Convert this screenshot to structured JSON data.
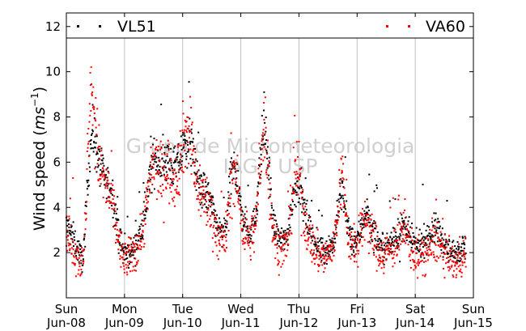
{
  "chart_data": {
    "type": "scatter",
    "watermark": [
      "Grupo de Micrometeorologia",
      "IAG / USP"
    ],
    "xlabel": "",
    "ylabel": "Wind speed (m s⁻¹)",
    "ylabel_parts": {
      "prefix": "Wind speed (",
      "unit": "ms",
      "exponent": "−1",
      "suffix": ")"
    },
    "ylim": [
      0,
      12.6
    ],
    "y_ticks": [
      2,
      4,
      6,
      8,
      10,
      12
    ],
    "x_range_days": [
      "2014-06-08",
      "2014-06-15"
    ],
    "x_ticks": [
      {
        "day": "Sun",
        "date": "Jun-08"
      },
      {
        "day": "Mon",
        "date": "Jun-09"
      },
      {
        "day": "Tue",
        "date": "Jun-10"
      },
      {
        "day": "Wed",
        "date": "Jun-11"
      },
      {
        "day": "Thu",
        "date": "Jun-12"
      },
      {
        "day": "Fri",
        "date": "Jun-13"
      },
      {
        "day": "Sat",
        "date": "Jun-14"
      },
      {
        "day": "Sun",
        "date": "Jun-15"
      }
    ],
    "grid": {
      "x": true,
      "y": false
    },
    "legend_placement": "top",
    "series": [
      {
        "name": "VL51",
        "color": "#000000",
        "hourly_mean": [
          3.2,
          3.0,
          2.8,
          2.6,
          2.3,
          2.1,
          1.8,
          1.7,
          3.5,
          5.5,
          6.8,
          7.3,
          6.8,
          6.3,
          5.8,
          5.5,
          5.2,
          5.0,
          4.8,
          4.6,
          4.0,
          3.2,
          2.6,
          2.2,
          2.0,
          1.9,
          2.0,
          2.1,
          2.2,
          2.4,
          2.7,
          3.0,
          3.5,
          4.2,
          5.0,
          5.6,
          6.0,
          6.2,
          6.1,
          5.9,
          6.0,
          6.2,
          6.1,
          5.9,
          5.8,
          5.7,
          5.9,
          6.2,
          6.5,
          6.8,
          6.9,
          6.9,
          6.5,
          5.8,
          5.3,
          5.1,
          4.9,
          4.7,
          4.5,
          4.3,
          4.0,
          3.7,
          3.3,
          3.0,
          2.8,
          2.9,
          3.2,
          4.3,
          5.3,
          5.8,
          5.5,
          4.8,
          4.0,
          3.4,
          3.2,
          3.0,
          2.9,
          3.1,
          3.6,
          4.7,
          6.0,
          7.2,
          7.3,
          6.3,
          5.0,
          3.6,
          3.0,
          2.8,
          2.6,
          2.5,
          2.6,
          2.7,
          3.3,
          4.2,
          4.8,
          4.9,
          5.0,
          4.5,
          4.0,
          3.5,
          3.2,
          3.0,
          2.6,
          2.3,
          2.2,
          2.2,
          2.1,
          2.1,
          2.2,
          2.3,
          2.4,
          2.8,
          3.7,
          4.6,
          4.7,
          4.0,
          3.2,
          2.8,
          2.5,
          2.4,
          2.6,
          2.8,
          3.2,
          3.7,
          3.9,
          3.4,
          3.0,
          2.8,
          2.6,
          2.4,
          2.3,
          2.2,
          2.3,
          2.4,
          2.5,
          2.6,
          2.7,
          2.8,
          2.9,
          3.1,
          3.0,
          2.8,
          2.6,
          2.5,
          2.3,
          2.3,
          2.4,
          2.5,
          2.6,
          2.7,
          2.8,
          2.9,
          3.0,
          3.1,
          2.9,
          2.6,
          2.4,
          2.2,
          2.1,
          2.0,
          2.0,
          2.1,
          2.2,
          2.3,
          2.4
        ]
      },
      {
        "name": "VA60",
        "color": "#ff0000",
        "hourly_mean": [
          2.8,
          2.6,
          2.4,
          2.2,
          2.0,
          1.8,
          1.6,
          1.5,
          3.8,
          6.8,
          8.6,
          9.2,
          7.8,
          6.5,
          5.8,
          5.3,
          5.0,
          4.7,
          4.5,
          4.2,
          3.6,
          2.9,
          2.3,
          1.9,
          1.7,
          1.6,
          1.8,
          1.9,
          2.0,
          2.2,
          2.5,
          2.8,
          3.3,
          4.0,
          4.8,
          5.5,
          5.8,
          5.9,
          5.7,
          5.4,
          5.5,
          5.8,
          5.7,
          5.5,
          5.4,
          5.4,
          5.7,
          6.2,
          6.8,
          7.3,
          7.5,
          7.4,
          6.6,
          5.6,
          5.0,
          4.8,
          4.6,
          4.4,
          4.2,
          4.0,
          3.7,
          3.3,
          2.9,
          2.6,
          2.4,
          2.5,
          2.8,
          3.9,
          5.0,
          5.6,
          5.3,
          4.5,
          3.7,
          3.1,
          2.9,
          2.7,
          2.6,
          2.8,
          3.2,
          4.3,
          5.8,
          7.4,
          7.6,
          6.1,
          4.6,
          3.2,
          2.6,
          2.4,
          2.2,
          2.1,
          2.2,
          2.3,
          3.0,
          4.2,
          5.3,
          5.6,
          5.4,
          4.6,
          3.8,
          3.1,
          2.8,
          2.6,
          2.2,
          2.0,
          1.9,
          1.9,
          1.8,
          1.8,
          1.9,
          2.0,
          2.2,
          2.6,
          3.8,
          5.2,
          5.4,
          4.2,
          3.0,
          2.5,
          2.2,
          2.1,
          2.3,
          2.5,
          2.9,
          3.4,
          3.6,
          3.1,
          2.7,
          2.5,
          2.3,
          2.1,
          2.0,
          1.9,
          2.0,
          2.1,
          2.2,
          2.3,
          2.4,
          2.5,
          2.7,
          3.1,
          2.9,
          2.6,
          2.3,
          2.1,
          1.9,
          1.8,
          1.8,
          1.9,
          2.0,
          2.1,
          2.2,
          2.3,
          2.4,
          2.6,
          2.4,
          2.1,
          1.9,
          1.7,
          1.6,
          1.5,
          1.5,
          1.6,
          1.7,
          1.8,
          1.9
        ]
      }
    ]
  }
}
